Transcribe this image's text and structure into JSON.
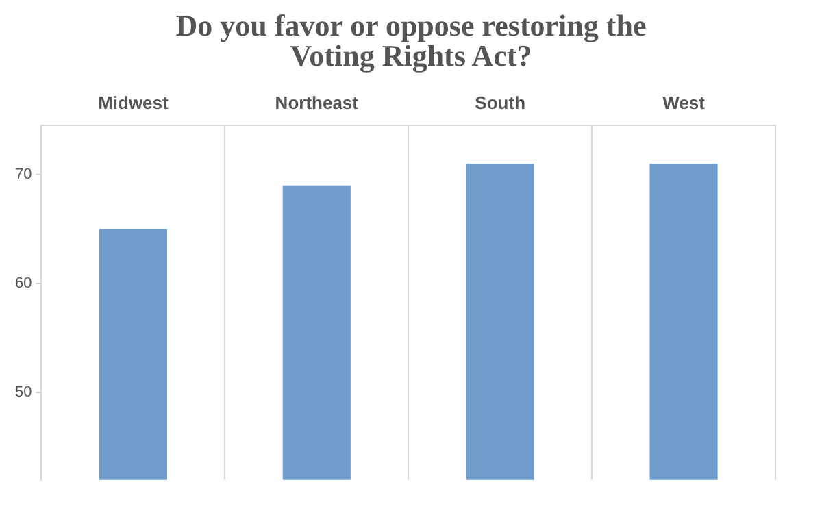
{
  "chart_data": {
    "type": "bar",
    "title": "Do you favor or oppose restoring the Voting Rights Act?",
    "categories": [
      "Midwest",
      "Northeast",
      "South",
      "West"
    ],
    "values": [
      65,
      69,
      71,
      71
    ],
    "color": "#6f9ccb",
    "ylim": [
      42,
      74.5
    ],
    "yticks": [
      50,
      60,
      70
    ],
    "grid": "x"
  }
}
